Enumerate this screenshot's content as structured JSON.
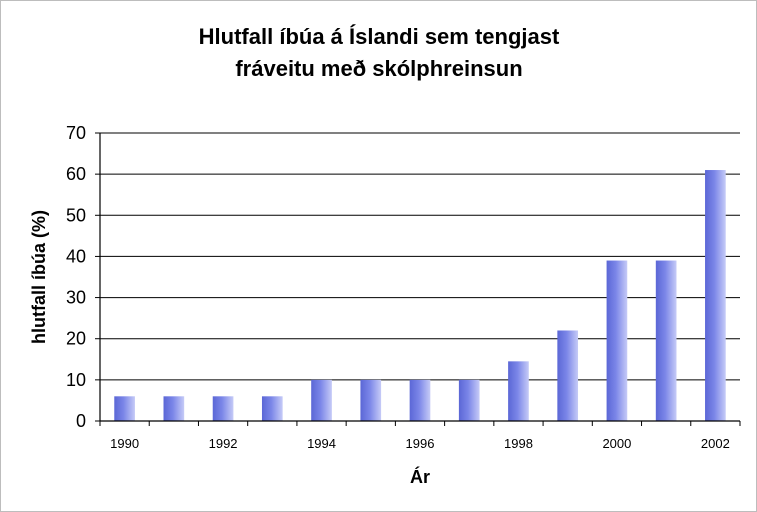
{
  "chart_data": {
    "type": "bar",
    "title_lines": [
      "Hlutfall íbúa á Íslandi sem tengjast",
      "fráveitu með skólphreinsun"
    ],
    "xlabel": "Ár",
    "ylabel": "hlutfall íbúa (%)",
    "categories": [
      "1990",
      "1991",
      "1992",
      "1993",
      "1994",
      "1995",
      "1996",
      "1997",
      "1998",
      "1999",
      "2000",
      "2001",
      "2002"
    ],
    "x_tick_labels": [
      "1990",
      "1992",
      "1994",
      "1996",
      "1998",
      "2000",
      "2002"
    ],
    "y_ticks": [
      0,
      10,
      20,
      30,
      40,
      50,
      60,
      70
    ],
    "values": [
      6,
      6,
      6,
      6,
      10,
      10,
      10,
      10,
      14.5,
      22,
      39,
      39,
      61
    ],
    "ylim": [
      0,
      70
    ],
    "grid": true,
    "legend": "none",
    "bar_color": "#7b86e8"
  }
}
